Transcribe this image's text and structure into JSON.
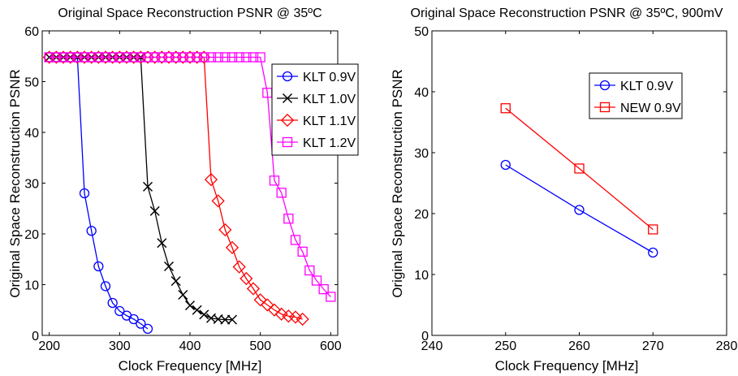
{
  "chart_data": [
    {
      "type": "line",
      "title": "Original Space Reconstruction PSNR @ 35ºC",
      "xlabel": "Clock Frequency [MHz]",
      "ylabel": "Original Space Reconstruction PSNR",
      "xlim": [
        190,
        610
      ],
      "ylim": [
        0,
        60
      ],
      "xticks": [
        200,
        300,
        400,
        500,
        600
      ],
      "yticks": [
        0,
        10,
        20,
        30,
        40,
        50,
        60
      ],
      "grid": false,
      "legend_position": "right",
      "series": [
        {
          "name": "KLT 0.9V",
          "color": "#0000ff",
          "marker": "circle",
          "x": [
            200,
            210,
            220,
            230,
            240,
            250,
            260,
            270,
            280,
            290,
            300,
            310,
            320,
            330,
            340
          ],
          "y": [
            54.8,
            54.8,
            54.8,
            54.8,
            54.8,
            28.0,
            20.6,
            13.6,
            9.7,
            6.4,
            4.8,
            3.9,
            3.2,
            2.3,
            1.3
          ]
        },
        {
          "name": "KLT 1.0V",
          "color": "#000000",
          "marker": "x",
          "x": [
            200,
            210,
            220,
            230,
            240,
            250,
            260,
            270,
            280,
            290,
            300,
            310,
            320,
            330,
            340,
            350,
            360,
            370,
            380,
            390,
            400,
            410,
            420,
            430,
            440,
            450,
            460
          ],
          "y": [
            54.8,
            54.8,
            54.8,
            54.8,
            54.8,
            54.8,
            54.8,
            54.8,
            54.8,
            54.8,
            54.8,
            54.8,
            54.8,
            54.8,
            29.3,
            24.5,
            18.2,
            13.6,
            10.7,
            8.0,
            5.9,
            5.0,
            4.1,
            3.4,
            3.2,
            3.1,
            3.1
          ]
        },
        {
          "name": "KLT 1.1V",
          "color": "#ff0000",
          "marker": "diamond",
          "x": [
            200,
            210,
            220,
            230,
            240,
            250,
            260,
            270,
            280,
            290,
            300,
            310,
            320,
            330,
            340,
            350,
            360,
            370,
            380,
            390,
            400,
            410,
            420,
            430,
            440,
            450,
            460,
            470,
            480,
            490,
            500,
            510,
            520,
            530,
            540,
            550,
            560
          ],
          "y": [
            54.8,
            54.8,
            54.8,
            54.8,
            54.8,
            54.8,
            54.8,
            54.8,
            54.8,
            54.8,
            54.8,
            54.8,
            54.8,
            54.8,
            54.8,
            54.8,
            54.8,
            54.8,
            54.8,
            54.8,
            54.8,
            54.8,
            54.8,
            30.7,
            26.5,
            20.8,
            17.3,
            13.5,
            11.2,
            9.2,
            7.0,
            6.0,
            5.0,
            4.2,
            3.8,
            3.6,
            3.2
          ]
        },
        {
          "name": "KLT 1.2V",
          "color": "#ff00ff",
          "marker": "square",
          "x": [
            200,
            210,
            220,
            230,
            240,
            250,
            260,
            270,
            280,
            290,
            300,
            310,
            320,
            330,
            340,
            350,
            360,
            370,
            380,
            390,
            400,
            410,
            420,
            430,
            440,
            450,
            460,
            470,
            480,
            490,
            500,
            510,
            520,
            530,
            540,
            550,
            560,
            570,
            580,
            590,
            600
          ],
          "y": [
            54.8,
            54.8,
            54.8,
            54.8,
            54.8,
            54.8,
            54.8,
            54.8,
            54.8,
            54.8,
            54.8,
            54.8,
            54.8,
            54.8,
            54.8,
            54.8,
            54.8,
            54.8,
            54.8,
            54.8,
            54.8,
            54.8,
            54.8,
            54.8,
            54.8,
            54.8,
            54.8,
            54.8,
            54.8,
            54.8,
            54.8,
            47.8,
            30.5,
            28.1,
            23.0,
            18.8,
            16.5,
            12.8,
            10.8,
            9.1,
            7.6
          ]
        }
      ]
    },
    {
      "type": "line",
      "title": "Original Space Reconstruction PSNR @ 35ºC, 900mV",
      "xlabel": "Clock Frequency [MHz]",
      "ylabel": "Original Space Reconstruction PSNR",
      "xlim": [
        240,
        280
      ],
      "ylim": [
        0,
        50
      ],
      "xticks": [
        240,
        250,
        260,
        270,
        280
      ],
      "yticks": [
        0,
        10,
        20,
        30,
        40,
        50
      ],
      "grid": false,
      "legend_position": "top",
      "series": [
        {
          "name": "KLT 0.9V",
          "color": "#0000ff",
          "marker": "circle",
          "x": [
            250,
            260,
            270
          ],
          "y": [
            28.0,
            20.6,
            13.6
          ]
        },
        {
          "name": "NEW 0.9V",
          "color": "#ff0000",
          "marker": "square",
          "x": [
            250,
            260,
            270
          ],
          "y": [
            37.3,
            27.4,
            17.4
          ]
        }
      ]
    }
  ]
}
